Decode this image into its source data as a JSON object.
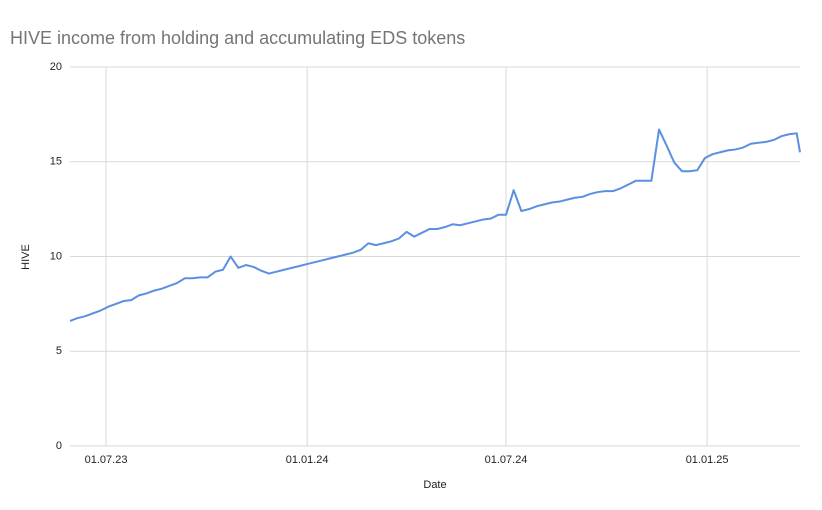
{
  "chart_data": {
    "type": "line",
    "title": "HIVE income from holding and accumulating EDS tokens",
    "x_label": "Date",
    "y_label": "HIVE",
    "x": [
      "29.05.23",
      "05.06.23",
      "12.06.23",
      "19.06.23",
      "26.06.23",
      "03.07.23",
      "10.07.23",
      "17.07.23",
      "24.07.23",
      "31.07.23",
      "07.08.23",
      "14.08.23",
      "21.08.23",
      "28.08.23",
      "04.09.23",
      "11.09.23",
      "18.09.23",
      "25.09.23",
      "02.10.23",
      "09.10.23",
      "16.10.23",
      "23.10.23",
      "30.10.23",
      "06.11.23",
      "13.11.23",
      "20.11.23",
      "27.11.23",
      "04.12.23",
      "11.12.23",
      "18.12.23",
      "25.12.23",
      "01.01.24",
      "08.01.24",
      "15.01.24",
      "22.01.24",
      "29.01.24",
      "05.02.24",
      "12.02.24",
      "19.02.24",
      "26.02.24",
      "04.03.24",
      "11.03.24",
      "18.03.24",
      "25.03.24",
      "01.04.24",
      "08.04.24",
      "15.04.24",
      "22.04.24",
      "29.04.24",
      "06.05.24",
      "13.05.24",
      "20.05.24",
      "27.05.24",
      "03.06.24",
      "10.06.24",
      "17.06.24",
      "24.06.24",
      "01.07.24",
      "08.07.24",
      "15.07.24",
      "22.07.24",
      "29.07.24",
      "05.08.24",
      "12.08.24",
      "19.08.24",
      "26.08.24",
      "02.09.24",
      "09.09.24",
      "16.09.24",
      "23.09.24",
      "30.09.24",
      "07.10.24",
      "14.10.24",
      "21.10.24",
      "28.10.24",
      "04.11.24",
      "11.11.24",
      "18.11.24",
      "25.11.24",
      "02.12.24",
      "09.12.24",
      "16.12.24",
      "23.12.24",
      "30.12.24",
      "06.01.25",
      "13.01.25",
      "20.01.25",
      "27.01.25",
      "03.02.25",
      "10.02.25",
      "17.02.25",
      "24.02.25",
      "03.03.25",
      "10.03.25",
      "17.03.25",
      "24.03.25",
      "27.03.25"
    ],
    "series": [
      {
        "name": "HIVE",
        "color": "#5b8fe3",
        "values": [
          6.6,
          6.75,
          6.85,
          7.0,
          7.15,
          7.35,
          7.5,
          7.65,
          7.7,
          7.95,
          8.05,
          8.2,
          8.3,
          8.45,
          8.6,
          8.85,
          8.85,
          8.9,
          8.9,
          9.2,
          9.3,
          10.0,
          9.4,
          9.55,
          9.45,
          9.25,
          9.1,
          9.2,
          9.3,
          9.4,
          9.5,
          9.6,
          9.7,
          9.8,
          9.9,
          10.0,
          10.1,
          10.2,
          10.35,
          10.7,
          10.6,
          10.7,
          10.8,
          10.95,
          11.3,
          11.05,
          11.25,
          11.45,
          11.45,
          11.55,
          11.7,
          11.65,
          11.75,
          11.85,
          11.95,
          12.0,
          12.2,
          12.2,
          13.5,
          12.4,
          12.5,
          12.65,
          12.75,
          12.85,
          12.9,
          13.0,
          13.1,
          13.15,
          13.3,
          13.4,
          13.45,
          13.45,
          13.6,
          13.8,
          14.0,
          14.0,
          14.0,
          16.7,
          15.85,
          14.95,
          14.5,
          14.5,
          14.55,
          15.2,
          15.4,
          15.5,
          15.6,
          15.65,
          15.75,
          15.95,
          16.0,
          16.05,
          16.15,
          16.35,
          16.45,
          16.5,
          15.5
        ]
      }
    ],
    "xlim": [
      "29.05.23",
      "27.03.25"
    ],
    "xticks": [
      "01.07.23",
      "01.01.24",
      "01.07.24",
      "01.01.25"
    ],
    "ylim": [
      0,
      20
    ],
    "yticks": [
      0,
      5,
      10,
      15,
      20
    ],
    "grid": true
  }
}
